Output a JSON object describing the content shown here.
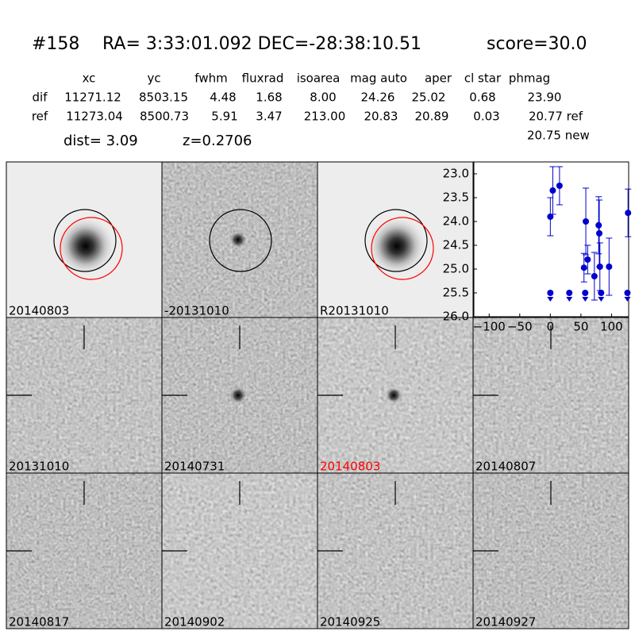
{
  "header": {
    "id": "#158",
    "coords": "RA= 3:33:01.092 DEC=-28:38:10.51",
    "score": "score=30.0"
  },
  "table": {
    "columns": [
      "xc",
      "yc",
      "fwhm",
      "fluxrad",
      "isoarea",
      "mag auto",
      "aper",
      "cl star",
      "phmag"
    ],
    "rows": [
      [
        "dif",
        "11271.12",
        "8503.15",
        "4.48",
        "1.68",
        "8.00",
        "24.26",
        "25.02",
        "0.68",
        "23.90"
      ],
      [
        "ref",
        "11273.04",
        "8500.73",
        "5.91",
        "3.47",
        "213.00",
        "20.83",
        "20.89",
        "0.03",
        "20.77 ref"
      ]
    ],
    "extra": "20.75 new"
  },
  "dist": "dist=  3.09",
  "redshift": "z=0.2706",
  "panels": [
    {
      "label": "20140803",
      "color": "#000000"
    },
    {
      "label": "-20131010",
      "color": "#000000"
    },
    {
      "label": "R20131010",
      "color": "#000000"
    },
    {
      "label": "20131010",
      "color": "#000000"
    },
    {
      "label": "20140731",
      "color": "#000000"
    },
    {
      "label": "20140803",
      "color": "#ff0000"
    },
    {
      "label": "20140807",
      "color": "#000000"
    },
    {
      "label": "20140817",
      "color": "#000000"
    },
    {
      "label": "20140902",
      "color": "#000000"
    },
    {
      "label": "20140925",
      "color": "#000000"
    },
    {
      "label": "20140927",
      "color": "#000000"
    }
  ],
  "chart_data": {
    "type": "scatter",
    "color": "#0000cc",
    "xlim": [
      -125,
      128
    ],
    "xticks": [
      {
        "value": -100,
        "label": "−100"
      },
      {
        "value": -50,
        "label": "−50"
      },
      0,
      50,
      100
    ],
    "ylim": [
      26.0,
      22.75
    ],
    "yticks": [
      {
        "value": 23.0,
        "label": "23.0"
      },
      {
        "value": 23.5,
        "label": "23.5"
      },
      {
        "value": 24.0,
        "label": "24.0"
      },
      {
        "value": 24.5,
        "label": "24.5"
      },
      {
        "value": 25.0,
        "label": "25.0"
      },
      {
        "value": 25.5,
        "label": "25.5"
      },
      {
        "value": 26.0,
        "label": "26.0"
      }
    ],
    "detections": {
      "x": [
        0,
        4,
        15,
        55,
        58,
        61,
        72,
        79,
        80,
        81,
        96,
        127
      ],
      "values": [
        23.9,
        23.35,
        23.25,
        24.97,
        24.0,
        24.8,
        25.15,
        24.08,
        24.25,
        24.95,
        24.95,
        23.82
      ],
      "errors": [
        0.4,
        0.5,
        0.4,
        0.3,
        0.7,
        0.3,
        0.5,
        0.6,
        0.7,
        0.5,
        0.6,
        0.5
      ]
    },
    "limits": {
      "x": [
        0,
        31,
        57,
        83,
        126
      ],
      "values": [
        25.5,
        25.5,
        25.5,
        25.5,
        25.5
      ]
    }
  }
}
